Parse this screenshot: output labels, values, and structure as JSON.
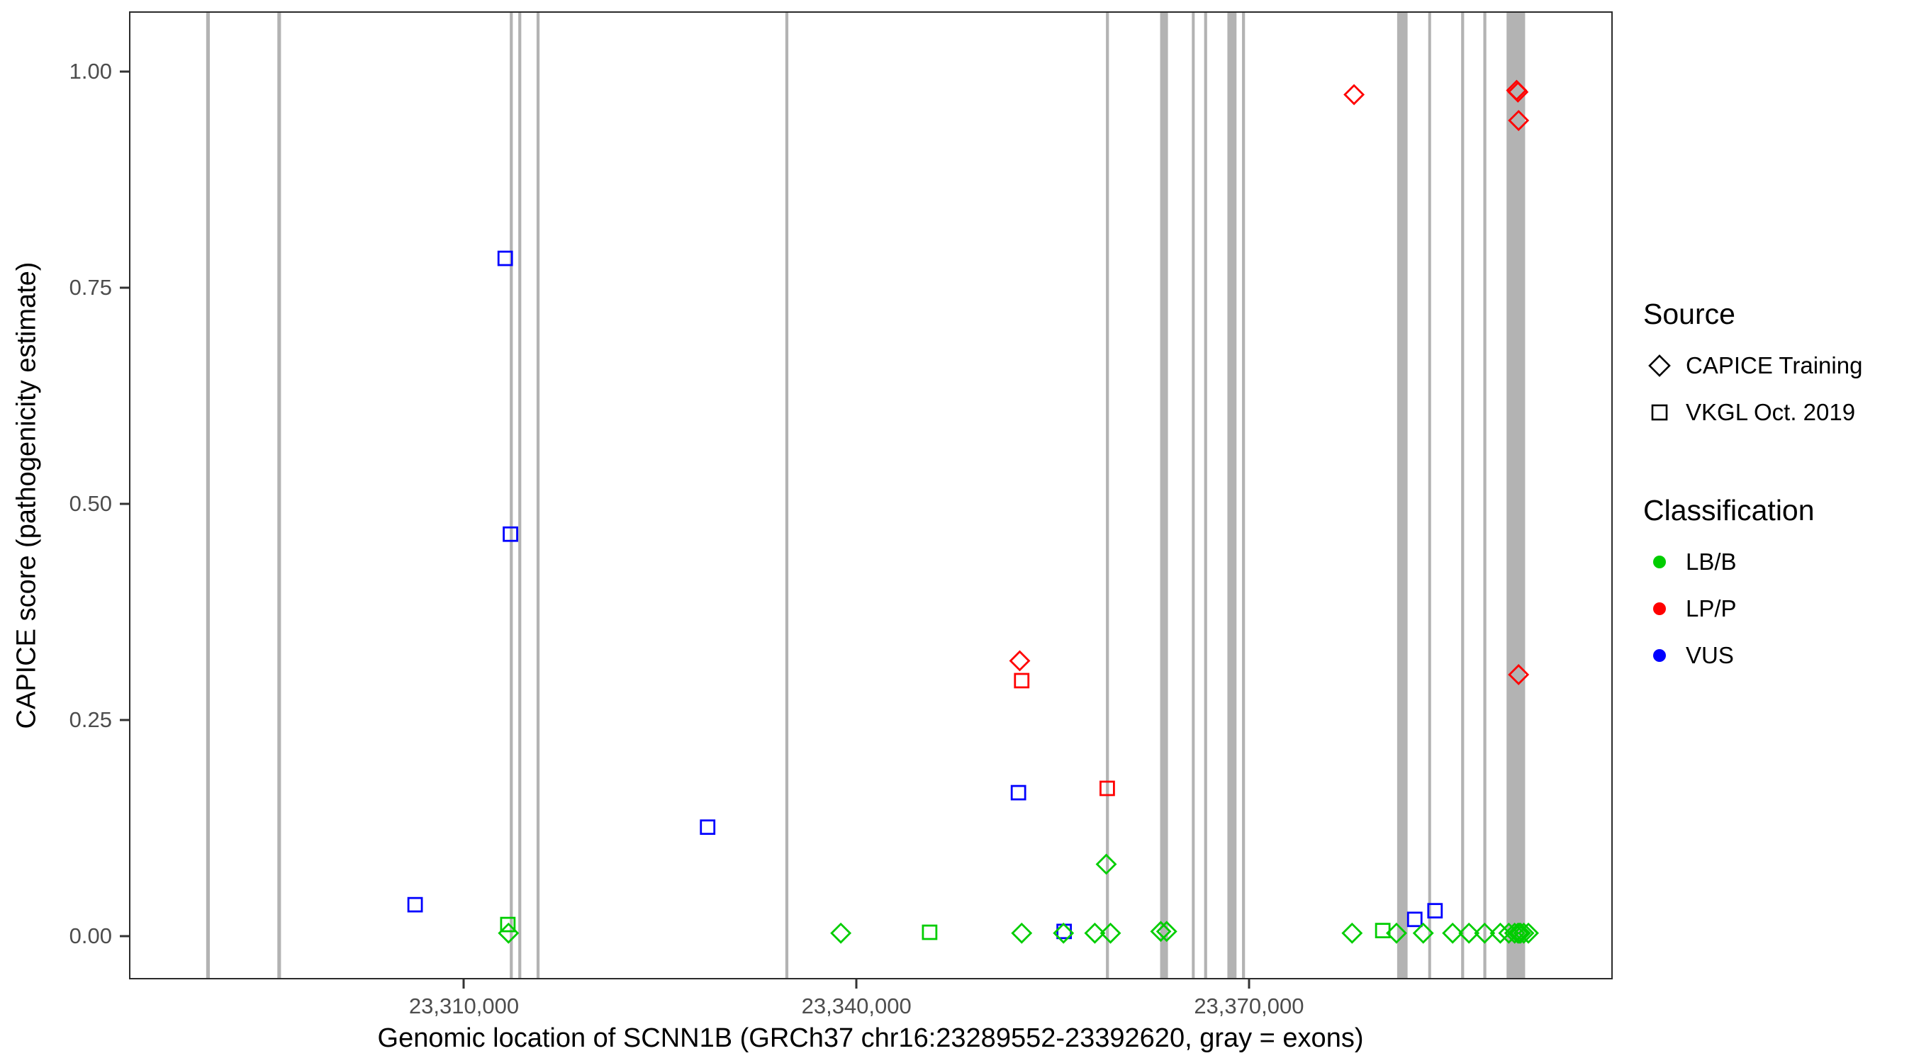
{
  "legend": {
    "source": {
      "title": "Source",
      "items": [
        {
          "label": "CAPICE Training",
          "shape": "diamond"
        },
        {
          "label": "VKGL Oct. 2019",
          "shape": "square"
        }
      ]
    },
    "classification": {
      "title": "Classification",
      "items": [
        {
          "label": "LB/B",
          "color": "#00CD00"
        },
        {
          "label": "LP/P",
          "color": "#FF0000"
        },
        {
          "label": "VUS",
          "color": "#0000FF"
        }
      ]
    }
  },
  "chart_data": {
    "type": "scatter",
    "title": "",
    "xlabel": "Genomic location of SCNN1B (GRCh37 chr16:23289552-23392620, gray = exons)",
    "ylabel": "CAPICE score (pathogenicity estimate)",
    "x_range": [
      23284400,
      23397800
    ],
    "y_range": [
      -0.05,
      1.07
    ],
    "grid": "off",
    "legend_position": "right",
    "x_ticks": [
      {
        "value": 23310000,
        "label": "23,310,000"
      },
      {
        "value": 23340000,
        "label": "23,340,000"
      },
      {
        "value": 23370000,
        "label": "23,370,000"
      }
    ],
    "y_ticks": [
      {
        "value": 0.0,
        "label": "0.00"
      },
      {
        "value": 0.25,
        "label": "0.25"
      },
      {
        "value": 0.5,
        "label": "0.50"
      },
      {
        "value": 0.75,
        "label": "0.75"
      },
      {
        "value": 1.0,
        "label": "1.00"
      }
    ],
    "exon_color": "#B3B3B3",
    "exons": [
      [
        23290200,
        23290480
      ],
      [
        23295650,
        23295930
      ],
      [
        23313450,
        23313680
      ],
      [
        23314100,
        23314330
      ],
      [
        23315500,
        23315730
      ],
      [
        23334550,
        23334780
      ],
      [
        23359100,
        23359330
      ],
      [
        23363250,
        23363850
      ],
      [
        23365680,
        23365900
      ],
      [
        23366620,
        23366850
      ],
      [
        23368400,
        23369100
      ],
      [
        23369520,
        23369750
      ],
      [
        23381400,
        23382200
      ],
      [
        23383780,
        23384000
      ],
      [
        23386300,
        23386530
      ],
      [
        23388000,
        23388230
      ],
      [
        23389780,
        23391200
      ]
    ],
    "points": [
      {
        "x": 23306200,
        "y": 0.035,
        "source": "VKGL Oct. 2019",
        "classification": "VUS"
      },
      {
        "x": 23313100,
        "y": 0.785,
        "source": "VKGL Oct. 2019",
        "classification": "VUS"
      },
      {
        "x": 23313500,
        "y": 0.465,
        "source": "VKGL Oct. 2019",
        "classification": "VUS"
      },
      {
        "x": 23328600,
        "y": 0.125,
        "source": "VKGL Oct. 2019",
        "classification": "VUS"
      },
      {
        "x": 23352400,
        "y": 0.165,
        "source": "VKGL Oct. 2019",
        "classification": "VUS"
      },
      {
        "x": 23355900,
        "y": 0.004,
        "source": "VKGL Oct. 2019",
        "classification": "VUS"
      },
      {
        "x": 23382750,
        "y": 0.018,
        "source": "VKGL Oct. 2019",
        "classification": "VUS"
      },
      {
        "x": 23384300,
        "y": 0.028,
        "source": "VKGL Oct. 2019",
        "classification": "VUS"
      },
      {
        "x": 23352500,
        "y": 0.318,
        "source": "CAPICE Training",
        "classification": "LP/P"
      },
      {
        "x": 23378100,
        "y": 0.975,
        "source": "CAPICE Training",
        "classification": "LP/P"
      },
      {
        "x": 23390550,
        "y": 0.98,
        "source": "CAPICE Training",
        "classification": "LP/P"
      },
      {
        "x": 23390650,
        "y": 0.978,
        "source": "CAPICE Training",
        "classification": "LP/P"
      },
      {
        "x": 23390700,
        "y": 0.945,
        "source": "CAPICE Training",
        "classification": "LP/P"
      },
      {
        "x": 23390700,
        "y": 0.302,
        "source": "CAPICE Training",
        "classification": "LP/P"
      },
      {
        "x": 23352650,
        "y": 0.295,
        "source": "VKGL Oct. 2019",
        "classification": "LP/P"
      },
      {
        "x": 23359200,
        "y": 0.17,
        "source": "VKGL Oct. 2019",
        "classification": "LP/P"
      },
      {
        "x": 23313300,
        "y": 0.012,
        "source": "VKGL Oct. 2019",
        "classification": "LB/B"
      },
      {
        "x": 23345600,
        "y": 0.003,
        "source": "VKGL Oct. 2019",
        "classification": "LB/B"
      },
      {
        "x": 23380300,
        "y": 0.005,
        "source": "VKGL Oct. 2019",
        "classification": "LB/B"
      },
      {
        "x": 23313350,
        "y": 0.002,
        "source": "CAPICE Training",
        "classification": "LB/B"
      },
      {
        "x": 23338800,
        "y": 0.002,
        "source": "CAPICE Training",
        "classification": "LB/B"
      },
      {
        "x": 23352650,
        "y": 0.002,
        "source": "CAPICE Training",
        "classification": "LB/B"
      },
      {
        "x": 23355850,
        "y": 0.002,
        "source": "CAPICE Training",
        "classification": "LB/B"
      },
      {
        "x": 23358250,
        "y": 0.002,
        "source": "CAPICE Training",
        "classification": "LB/B"
      },
      {
        "x": 23359125,
        "y": 0.082,
        "source": "CAPICE Training",
        "classification": "LB/B"
      },
      {
        "x": 23359450,
        "y": 0.002,
        "source": "CAPICE Training",
        "classification": "LB/B"
      },
      {
        "x": 23363300,
        "y": 0.004,
        "source": "CAPICE Training",
        "classification": "LB/B"
      },
      {
        "x": 23363750,
        "y": 0.004,
        "source": "CAPICE Training",
        "classification": "LB/B"
      },
      {
        "x": 23377950,
        "y": 0.002,
        "source": "CAPICE Training",
        "classification": "LB/B"
      },
      {
        "x": 23381350,
        "y": 0.002,
        "source": "CAPICE Training",
        "classification": "LB/B"
      },
      {
        "x": 23383400,
        "y": 0.002,
        "source": "CAPICE Training",
        "classification": "LB/B"
      },
      {
        "x": 23385650,
        "y": 0.002,
        "source": "CAPICE Training",
        "classification": "LB/B"
      },
      {
        "x": 23386900,
        "y": 0.002,
        "source": "CAPICE Training",
        "classification": "LB/B"
      },
      {
        "x": 23388100,
        "y": 0.002,
        "source": "CAPICE Training",
        "classification": "LB/B"
      },
      {
        "x": 23389300,
        "y": 0.002,
        "source": "CAPICE Training",
        "classification": "LB/B"
      },
      {
        "x": 23389950,
        "y": 0.002,
        "source": "CAPICE Training",
        "classification": "LB/B"
      },
      {
        "x": 23390400,
        "y": 0.002,
        "source": "CAPICE Training",
        "classification": "LB/B"
      },
      {
        "x": 23390650,
        "y": 0.002,
        "source": "CAPICE Training",
        "classification": "LB/B"
      },
      {
        "x": 23390750,
        "y": 0.002,
        "source": "CAPICE Training",
        "classification": "LB/B"
      },
      {
        "x": 23390850,
        "y": 0.002,
        "source": "CAPICE Training",
        "classification": "LB/B"
      },
      {
        "x": 23391100,
        "y": 0.002,
        "source": "CAPICE Training",
        "classification": "LB/B"
      },
      {
        "x": 23391450,
        "y": 0.002,
        "source": "CAPICE Training",
        "classification": "LB/B"
      }
    ]
  }
}
